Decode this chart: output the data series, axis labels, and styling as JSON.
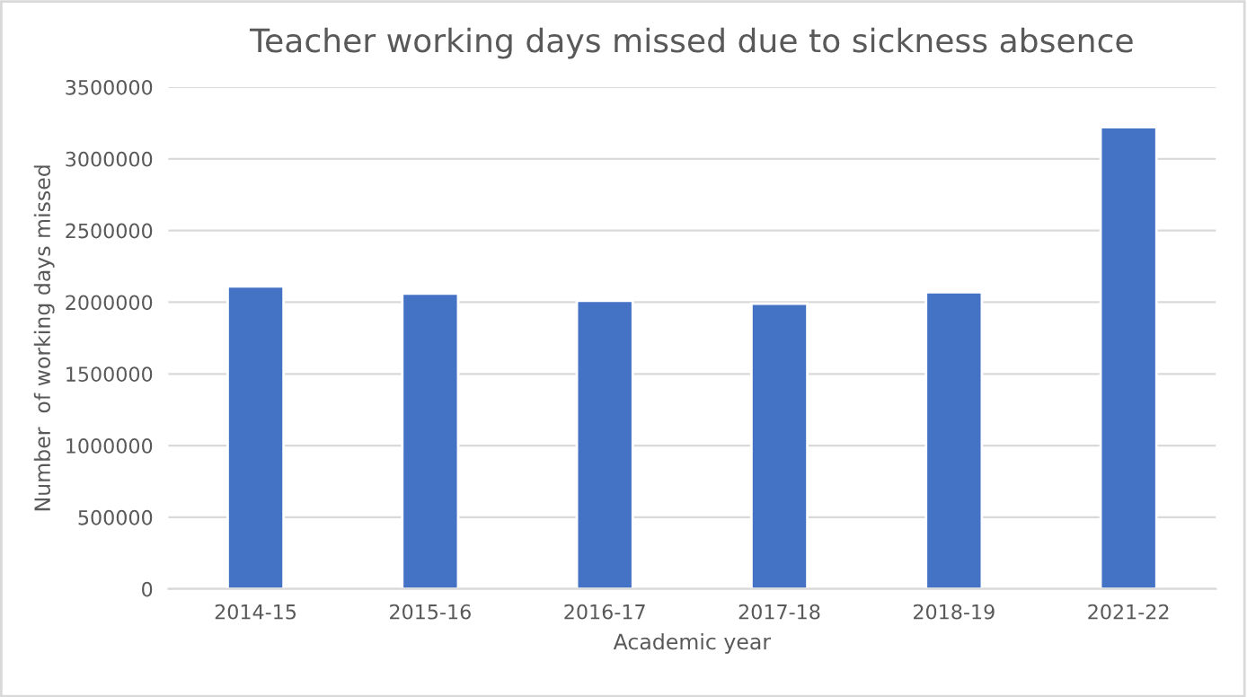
{
  "chart_data": {
    "type": "bar",
    "title": "Teacher working days missed due to sickness absence",
    "xlabel": "Academic year",
    "ylabel": "Number  of working days missed",
    "categories": [
      "2014-15",
      "2015-16",
      "2016-17",
      "2017-18",
      "2018-19",
      "2021-22"
    ],
    "values": [
      2110000,
      2060000,
      2010000,
      1990000,
      2070000,
      3220000
    ],
    "color": "#4472c4",
    "ylim": [
      0,
      3500000
    ],
    "yticks": [
      0,
      500000,
      1000000,
      1500000,
      2000000,
      2500000,
      3000000,
      3500000
    ],
    "grid": "y"
  }
}
